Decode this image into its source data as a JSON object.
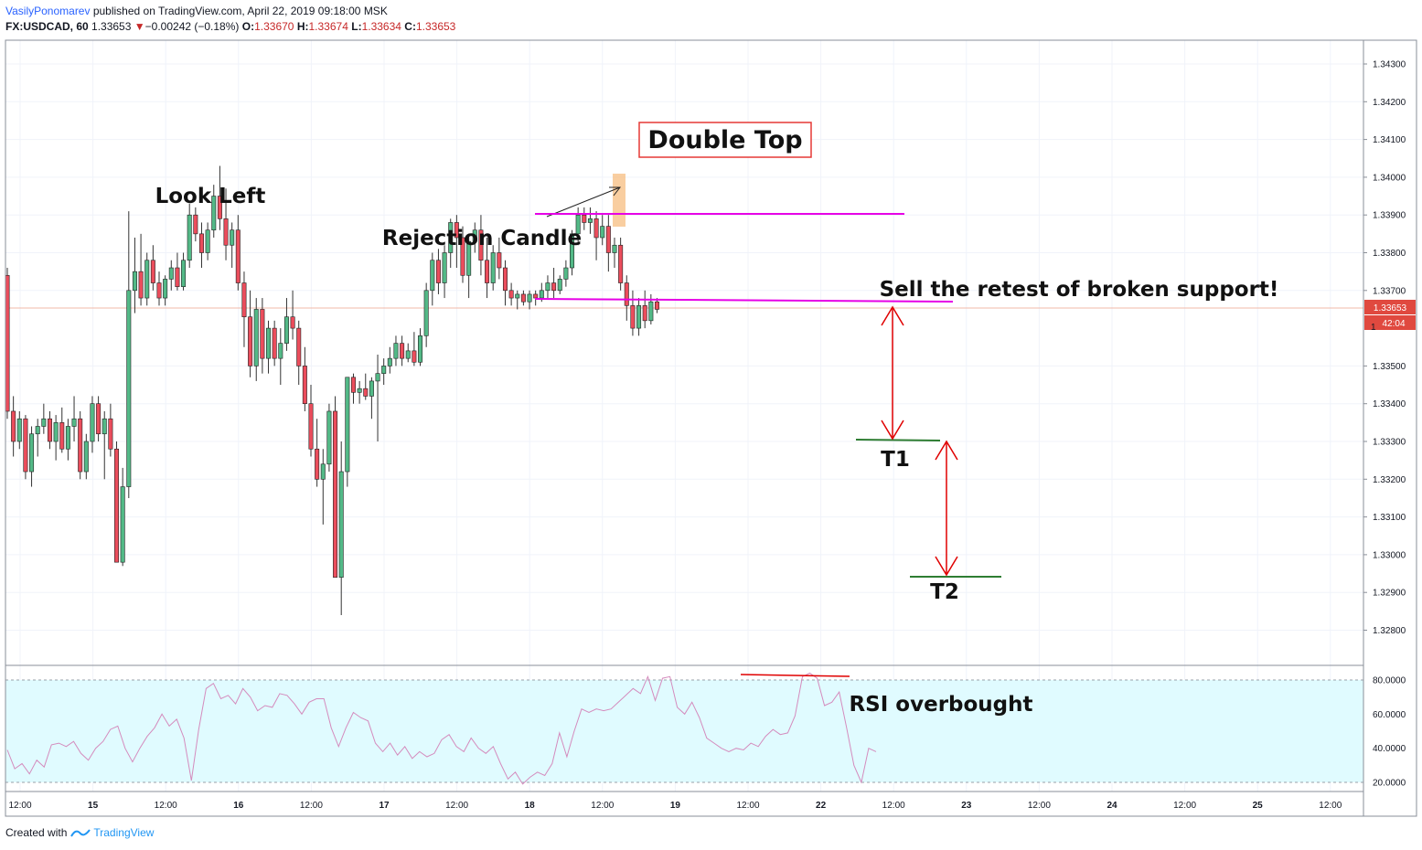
{
  "header": {
    "author": "VasilyPonomarev",
    "published": "published on TradingView.com, April 22, 2019 09:18:00 MSK",
    "symbol": "FX:USDCAD, 60",
    "last": "1.33653",
    "change": "−0.00242 (−0.18%)",
    "o_label": "O:",
    "o": "1.33670",
    "h_label": "H:",
    "h": "1.33674",
    "l_label": "L:",
    "l": "1.33634",
    "c_label": "C:",
    "c": "1.33653"
  },
  "footer": {
    "created_with": "Created with",
    "brand": "TradingView"
  },
  "colors": {
    "up": "#53b987",
    "down": "#eb4d5c",
    "grid": "#f0f3fa",
    "magenta": "#e600e6",
    "target_line": "#2e7d32",
    "arrow": "#e00000",
    "rsi_fill": "#e0fbff",
    "rsi_line": "#d48bbd",
    "price_tag": "#e0493f"
  },
  "price_axis_labels": [
    "1.34300",
    "1.34200",
    "1.34100",
    "1.34000",
    "1.33900",
    "1.33800",
    "1.33700",
    "1.33500",
    "1.33400",
    "1.33300",
    "1.33200",
    "1.33100",
    "1.33000",
    "1.32900",
    "1.32800"
  ],
  "price_tag": {
    "value": "1.33653",
    "countdown": "42:04",
    "partial": "1"
  },
  "rsi_axis_labels": [
    "80.0000",
    "60.0000",
    "40.0000",
    "20.0000"
  ],
  "time_axis_labels": [
    "12:00",
    "15",
    "12:00",
    "16",
    "12:00",
    "17",
    "12:00",
    "18",
    "12:00",
    "19",
    "12:00",
    "22",
    "12:00",
    "23",
    "12:00",
    "24",
    "12:00",
    "25",
    "12:00"
  ],
  "annotations": {
    "double_top": "Double Top",
    "look_left": "Look Left",
    "rejection_candle": "Rejection Candle",
    "sell_retest": "Sell the retest of broken support!",
    "t1": "T1",
    "t2": "T2",
    "rsi_overbought": "RSI overbought"
  },
  "chart_data": [
    {
      "type": "candlestick",
      "symbol": "FX:USDCAD",
      "interval": "60",
      "ylim": [
        1.3273,
        1.3438
      ],
      "series": [
        {
          "name": "USDCAD",
          "values": [
            [
              1.3374,
              1.3376,
              1.3336,
              1.3338
            ],
            [
              1.3338,
              1.3342,
              1.3326,
              1.333
            ],
            [
              1.333,
              1.3338,
              1.3328,
              1.3336
            ],
            [
              1.3336,
              1.3337,
              1.332,
              1.3322
            ],
            [
              1.3322,
              1.3334,
              1.3318,
              1.3332
            ],
            [
              1.3332,
              1.3336,
              1.3326,
              1.3334
            ],
            [
              1.3334,
              1.334,
              1.3332,
              1.3336
            ],
            [
              1.3336,
              1.3338,
              1.3328,
              1.333
            ],
            [
              1.333,
              1.3337,
              1.3325,
              1.3335
            ],
            [
              1.3335,
              1.3339,
              1.3327,
              1.3328
            ],
            [
              1.3328,
              1.3336,
              1.3325,
              1.3334
            ],
            [
              1.3334,
              1.3342,
              1.333,
              1.3336
            ],
            [
              1.3336,
              1.3338,
              1.332,
              1.3322
            ],
            [
              1.3322,
              1.3332,
              1.332,
              1.333
            ],
            [
              1.333,
              1.3342,
              1.3327,
              1.334
            ],
            [
              1.334,
              1.3342,
              1.333,
              1.3332
            ],
            [
              1.3332,
              1.3338,
              1.332,
              1.3336
            ],
            [
              1.3336,
              1.334,
              1.3326,
              1.3328
            ],
            [
              1.3328,
              1.333,
              1.3298,
              1.3298
            ],
            [
              1.3298,
              1.3323,
              1.3297,
              1.3318
            ],
            [
              1.3318,
              1.3391,
              1.3315,
              1.337
            ],
            [
              1.337,
              1.3384,
              1.3364,
              1.3375
            ],
            [
              1.3375,
              1.3385,
              1.3366,
              1.3368
            ],
            [
              1.3368,
              1.338,
              1.3366,
              1.3378
            ],
            [
              1.3378,
              1.3382,
              1.337,
              1.3372
            ],
            [
              1.3372,
              1.3375,
              1.3366,
              1.3368
            ],
            [
              1.3368,
              1.3374,
              1.3366,
              1.3373
            ],
            [
              1.3373,
              1.3378,
              1.337,
              1.3376
            ],
            [
              1.3376,
              1.338,
              1.337,
              1.3371
            ],
            [
              1.3371,
              1.338,
              1.337,
              1.3378
            ],
            [
              1.3378,
              1.3393,
              1.3376,
              1.339
            ],
            [
              1.339,
              1.3392,
              1.3383,
              1.3385
            ],
            [
              1.3385,
              1.3388,
              1.3376,
              1.338
            ],
            [
              1.338,
              1.3388,
              1.3378,
              1.3386
            ],
            [
              1.3386,
              1.3398,
              1.3384,
              1.3395
            ],
            [
              1.3395,
              1.3403,
              1.3386,
              1.3389
            ],
            [
              1.3389,
              1.3397,
              1.3378,
              1.3382
            ],
            [
              1.3382,
              1.3388,
              1.3376,
              1.3386
            ],
            [
              1.3386,
              1.339,
              1.337,
              1.3372
            ],
            [
              1.3372,
              1.3375,
              1.3355,
              1.3363
            ],
            [
              1.3363,
              1.337,
              1.3347,
              1.335
            ],
            [
              1.335,
              1.3368,
              1.3346,
              1.3365
            ],
            [
              1.3365,
              1.3368,
              1.3348,
              1.3352
            ],
            [
              1.3352,
              1.3362,
              1.3348,
              1.336
            ],
            [
              1.336,
              1.3362,
              1.335,
              1.3352
            ],
            [
              1.3352,
              1.336,
              1.3345,
              1.3356
            ],
            [
              1.3356,
              1.3368,
              1.3354,
              1.3363
            ],
            [
              1.3363,
              1.337,
              1.3357,
              1.336
            ],
            [
              1.336,
              1.3362,
              1.3345,
              1.335
            ],
            [
              1.335,
              1.3355,
              1.3338,
              1.334
            ],
            [
              1.334,
              1.3345,
              1.3326,
              1.3328
            ],
            [
              1.3328,
              1.3336,
              1.3318,
              1.332
            ],
            [
              1.332,
              1.3328,
              1.3308,
              1.3324
            ],
            [
              1.3324,
              1.334,
              1.3322,
              1.3338
            ],
            [
              1.3338,
              1.3342,
              1.3294,
              1.3294
            ],
            [
              1.3294,
              1.333,
              1.3284,
              1.3322
            ],
            [
              1.3322,
              1.3343,
              1.3318,
              1.3347
            ],
            [
              1.3347,
              1.3348,
              1.334,
              1.3343
            ],
            [
              1.3343,
              1.3346,
              1.334,
              1.3344
            ],
            [
              1.3344,
              1.3348,
              1.3341,
              1.3342
            ],
            [
              1.3342,
              1.3347,
              1.3336,
              1.3346
            ],
            [
              1.3346,
              1.3353,
              1.333,
              1.3348
            ],
            [
              1.3348,
              1.3352,
              1.3345,
              1.335
            ],
            [
              1.335,
              1.3355,
              1.3348,
              1.3352
            ],
            [
              1.3352,
              1.3358,
              1.335,
              1.3356
            ],
            [
              1.3356,
              1.3358,
              1.335,
              1.3352
            ],
            [
              1.3352,
              1.3356,
              1.3351,
              1.3354
            ],
            [
              1.3354,
              1.3359,
              1.335,
              1.3351
            ],
            [
              1.3351,
              1.336,
              1.335,
              1.3358
            ],
            [
              1.3358,
              1.3372,
              1.3355,
              1.337
            ],
            [
              1.337,
              1.338,
              1.3366,
              1.3378
            ],
            [
              1.3378,
              1.3381,
              1.3369,
              1.3372
            ],
            [
              1.3372,
              1.3382,
              1.3368,
              1.338
            ],
            [
              1.338,
              1.3389,
              1.3376,
              1.3388
            ],
            [
              1.3388,
              1.339,
              1.3376,
              1.3384
            ],
            [
              1.3384,
              1.3387,
              1.3372,
              1.3374
            ],
            [
              1.3374,
              1.3385,
              1.3368,
              1.3383
            ],
            [
              1.3383,
              1.3388,
              1.338,
              1.3386
            ],
            [
              1.3386,
              1.339,
              1.3374,
              1.3378
            ],
            [
              1.3378,
              1.3384,
              1.3368,
              1.3372
            ],
            [
              1.3372,
              1.3382,
              1.337,
              1.338
            ],
            [
              1.338,
              1.3384,
              1.3373,
              1.3376
            ],
            [
              1.3376,
              1.3378,
              1.3366,
              1.337
            ],
            [
              1.337,
              1.3372,
              1.3366,
              1.3368
            ],
            [
              1.3368,
              1.337,
              1.3365,
              1.3369
            ],
            [
              1.3369,
              1.337,
              1.3366,
              1.3367
            ],
            [
              1.3367,
              1.337,
              1.3365,
              1.3369
            ],
            [
              1.3369,
              1.337,
              1.3366,
              1.3368
            ],
            [
              1.3368,
              1.3372,
              1.3367,
              1.337
            ],
            [
              1.337,
              1.3374,
              1.3368,
              1.3372
            ],
            [
              1.3372,
              1.3376,
              1.3368,
              1.337
            ],
            [
              1.337,
              1.3374,
              1.3369,
              1.3373
            ],
            [
              1.3373,
              1.3378,
              1.3371,
              1.3376
            ],
            [
              1.3376,
              1.3386,
              1.3374,
              1.3385
            ],
            [
              1.3385,
              1.3392,
              1.3382,
              1.339
            ],
            [
              1.339,
              1.3392,
              1.3386,
              1.3388
            ],
            [
              1.3388,
              1.3392,
              1.3385,
              1.3389
            ],
            [
              1.3389,
              1.3391,
              1.3378,
              1.3384
            ],
            [
              1.3384,
              1.339,
              1.3382,
              1.3387
            ],
            [
              1.3387,
              1.339,
              1.3375,
              1.338
            ],
            [
              1.338,
              1.3384,
              1.3376,
              1.3382
            ],
            [
              1.3382,
              1.3384,
              1.337,
              1.3372
            ],
            [
              1.3372,
              1.3374,
              1.3362,
              1.3366
            ],
            [
              1.3366,
              1.337,
              1.3358,
              1.336
            ],
            [
              1.336,
              1.3368,
              1.3358,
              1.3366
            ],
            [
              1.3366,
              1.337,
              1.336,
              1.3362
            ],
            [
              1.3362,
              1.3369,
              1.3361,
              1.3367
            ],
            [
              1.3367,
              1.3368,
              1.3364,
              1.3365
            ]
          ]
        }
      ]
    },
    {
      "type": "line",
      "name": "RSI",
      "ylim": [
        16,
        86
      ],
      "reference_lines": [
        80,
        20
      ],
      "values": [
        39,
        28,
        31,
        25,
        33,
        29,
        42,
        43,
        41,
        44,
        37,
        33,
        40,
        44,
        51,
        53,
        40,
        32,
        40,
        47,
        52,
        60,
        53,
        57,
        46,
        21,
        51,
        75,
        78,
        69,
        71,
        66,
        75,
        70,
        62,
        65,
        64,
        72,
        71,
        66,
        60,
        67,
        69,
        69,
        52,
        41,
        52,
        61,
        58,
        56,
        43,
        38,
        43,
        36,
        41,
        34,
        38,
        35,
        37,
        45,
        48,
        41,
        38,
        46,
        40,
        37,
        41,
        31,
        22,
        26,
        19,
        23,
        26,
        24,
        31,
        49,
        35,
        50,
        63,
        61,
        63,
        62,
        63,
        67,
        71,
        75,
        72,
        82,
        68,
        81,
        82,
        64,
        60,
        67,
        58,
        46,
        43,
        40,
        38,
        40,
        39,
        43,
        41,
        47,
        51,
        48,
        49,
        59,
        82,
        84,
        81,
        65,
        67,
        73,
        52,
        30,
        20,
        40,
        38
      ]
    }
  ]
}
